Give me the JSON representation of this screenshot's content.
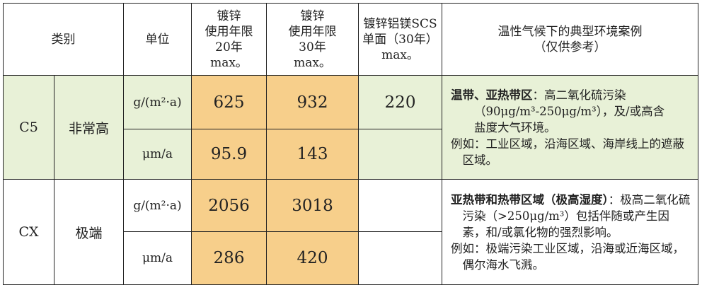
{
  "headers": {
    "category": "类别",
    "unit": "单位",
    "galv20": [
      "镀锌",
      "使用年限",
      "20年",
      "max。"
    ],
    "galv30": [
      "镀锌",
      "使用年限",
      "30年",
      "max。"
    ],
    "scs": [
      "镀锌铝镁SCS",
      "单面（30年）",
      "max。"
    ],
    "env": [
      "温性气候下的典型环境案例",
      "（仅供参考）"
    ]
  },
  "rows": [
    {
      "code": "C5",
      "level": "非常高",
      "unit_mass": "g/(m²·a)",
      "unit_thick": "μm/a",
      "g20_mass": "625",
      "g30_mass": "932",
      "scs_mass": "220",
      "g20_thick": "95.9",
      "g30_thick": "143",
      "desc_bold": "温带、亚热带区",
      "desc_rest": "：高二氧化硫污染",
      "desc_line2": "（90μg/m³-250μg/m³），及/或高含",
      "desc_line3": "盐度大气环境。",
      "example": "例如：工业区域，沿海区域、海岸线上的遮蔽区域。"
    },
    {
      "code": "CX",
      "level": "极端",
      "unit_mass": "g/(m²·a)",
      "unit_thick": "μm/a",
      "g20_mass": "2056",
      "g30_mass": "3018",
      "g20_thick": "286",
      "g30_thick": "420",
      "desc_bold": "亚热带和热带区域（极高湿度）",
      "desc_rest": "：极高二氧化硫污染（>250μg/m³）包括伴随或产生因素，和/或氯化物的强烈影响。",
      "example": "例如：极端污染工业区域，沿海或近海区域，偶尔海水飞溅。"
    }
  ],
  "colors": {
    "c5_bg": "#e8f1d7",
    "orange": "#f7cf8b",
    "border": "#222222"
  }
}
